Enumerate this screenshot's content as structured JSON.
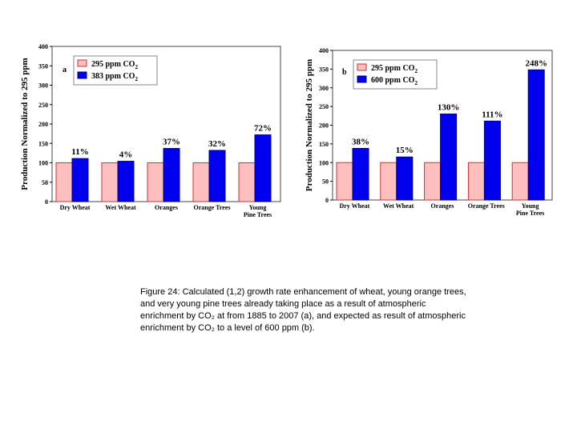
{
  "colors": {
    "baseline": "#ffbfbf",
    "baseline_stroke": "#cc3333",
    "enriched": "#0000ee",
    "enriched_stroke": "#000080"
  },
  "chart_data": [
    {
      "type": "bar",
      "panel_label": "a",
      "ylabel": "Production Normalized to 295 ppm",
      "ylim": [
        0,
        400
      ],
      "yticks": [
        0,
        50,
        100,
        150,
        200,
        250,
        300,
        350,
        400
      ],
      "grid": false,
      "legend_position": "top-left",
      "categories": [
        [
          "Dry Wheat"
        ],
        [
          "Wet Wheat"
        ],
        [
          "Oranges"
        ],
        [
          "Orange Trees"
        ],
        [
          "Young",
          "Pine Trees"
        ]
      ],
      "series": [
        {
          "name": "295 ppm CO",
          "subscript": "2",
          "values": [
            100,
            100,
            100,
            100,
            100
          ]
        },
        {
          "name": "383 ppm CO",
          "subscript": "2",
          "values": [
            111,
            104,
            137,
            132,
            172
          ]
        }
      ],
      "annotations": [
        "11%",
        "4%",
        "37%",
        "32%",
        "72%"
      ]
    },
    {
      "type": "bar",
      "panel_label": "b",
      "ylabel": "Production Normalized to 295 ppm",
      "ylim": [
        0,
        400
      ],
      "yticks": [
        0,
        50,
        100,
        150,
        200,
        250,
        300,
        350,
        400
      ],
      "grid": false,
      "legend_position": "top-left",
      "categories": [
        [
          "Dry Wheat"
        ],
        [
          "Wet Wheat"
        ],
        [
          "Oranges"
        ],
        [
          "Orange Trees"
        ],
        [
          "Young",
          "Pine Trees"
        ]
      ],
      "series": [
        {
          "name": "295 ppm CO",
          "subscript": "2",
          "values": [
            100,
            100,
            100,
            100,
            100
          ]
        },
        {
          "name": "600 ppm CO",
          "subscript": "2",
          "values": [
            138,
            115,
            230,
            211,
            348
          ]
        }
      ],
      "annotations": [
        "38%",
        "15%",
        "130%",
        "111%",
        "248%"
      ]
    }
  ],
  "caption": {
    "lines": [
      "Figure 24: Calculated (1,2) growth rate enhancement of wheat, young orange trees,",
      "and very young pine trees already taking place as a result of atmospheric",
      "enrichment by CO₂ at from 1885 to 2007 (a), and expected as result of atmospheric",
      "enrichment by CO₂ to a level of 600 ppm (b)."
    ]
  }
}
